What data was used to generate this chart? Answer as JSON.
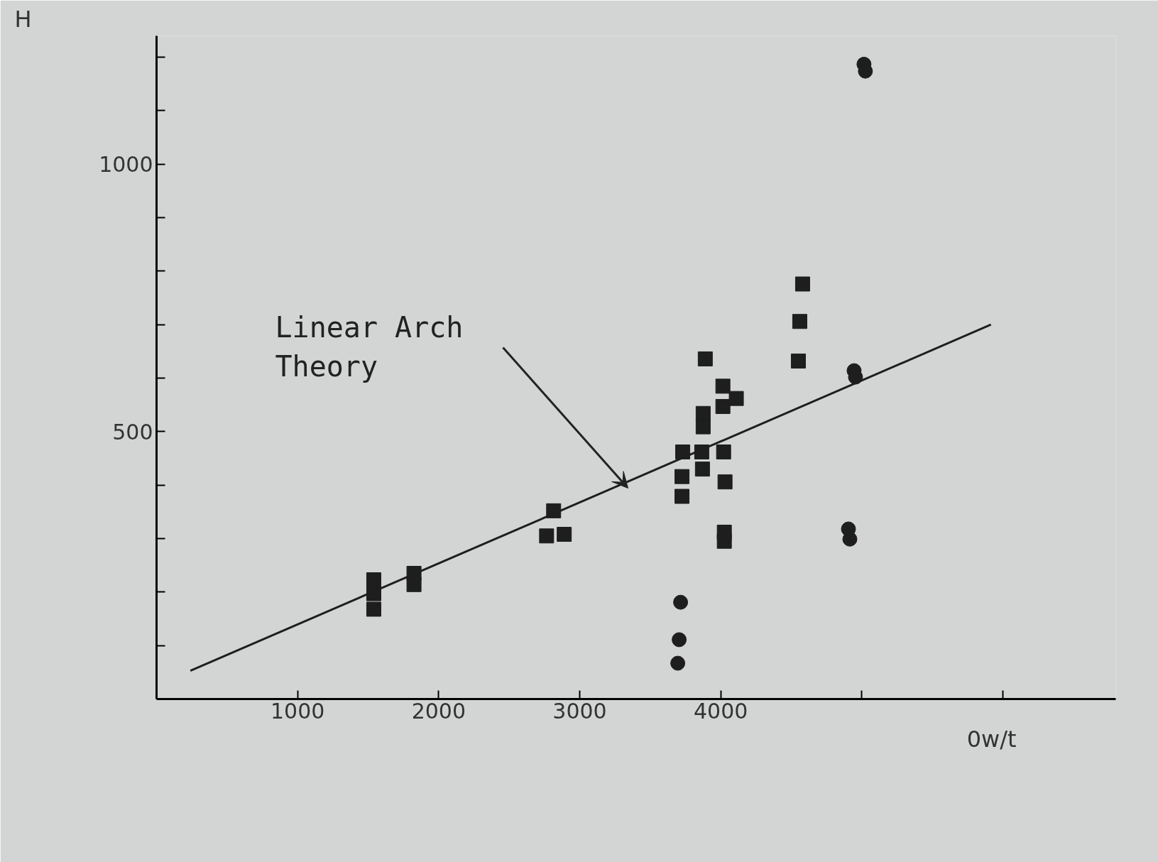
{
  "chart_data": {
    "type": "scatter",
    "xlabel": "0w/t",
    "ylabel": "H",
    "xlim": [
      0,
      6800
    ],
    "ylim": [
      0,
      1240
    ],
    "xticks": [
      1000,
      2000,
      3000,
      4000,
      {
        "value": 5000,
        "label": null
      },
      {
        "value": 6000,
        "label": null
      }
    ],
    "yticks": [
      {
        "value": 100,
        "label": null
      },
      {
        "value": 200,
        "label": null
      },
      {
        "value": 300,
        "label": null
      },
      {
        "value": 400,
        "label": null
      },
      500,
      {
        "value": 600,
        "label": null
      },
      {
        "value": 700,
        "label": null
      },
      {
        "value": 800,
        "label": null
      },
      {
        "value": 900,
        "label": null
      },
      1000,
      {
        "value": 1100,
        "label": null
      },
      {
        "value": 1200,
        "label": null
      }
    ],
    "grid": false,
    "series": [
      {
        "type": "scatter",
        "marker": "square",
        "color": "#1e1e1e",
        "x": [
          1540,
          1540,
          1540,
          1825,
          1825,
          2815,
          2765,
          2890,
          3730,
          3725,
          3725,
          3865,
          3870,
          3875,
          3875,
          3890,
          4015,
          4015,
          4110,
          4020,
          4030,
          4025,
          4025,
          4580,
          4560,
          4550
        ],
        "values": [
          223,
          197,
          168,
          235,
          214,
          352,
          305,
          308,
          462,
          416,
          379,
          462,
          430,
          534,
          509,
          636,
          585,
          547,
          562,
          462,
          406,
          312,
          295,
          776,
          706,
          632
        ]
      },
      {
        "type": "scatter",
        "marker": "circle",
        "color": "#1e1e1e",
        "x": [
          3715,
          3705,
          3695,
          4945,
          4955,
          4905,
          4915,
          5015,
          5025
        ],
        "values": [
          181,
          111,
          67,
          614,
          602,
          318,
          299,
          1187,
          1174
        ]
      },
      {
        "type": "line",
        "line_style": "solid",
        "color": "#1e1e1e",
        "x": [
          240,
          5915
        ],
        "values": [
          53,
          700
        ]
      }
    ],
    "annotations": [
      "Linear Arch Theory"
    ]
  }
}
